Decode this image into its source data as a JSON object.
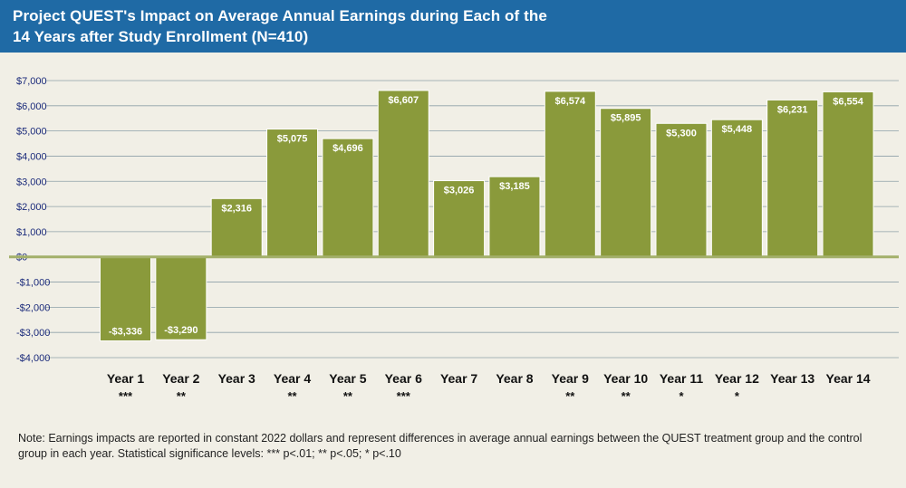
{
  "header": {
    "title_line1": "Project QUEST's Impact on Average Annual Earnings during Each of the",
    "title_line2": "14 Years after Study Enrollment (N=410)"
  },
  "colors": {
    "header_bg": "#1f6aa5",
    "bar": "#8a9a3b",
    "gridline": "#8ea0a8",
    "zero_line": "#a3b06a",
    "background": "#f1efe6"
  },
  "chart_data": {
    "type": "bar",
    "title": "Project QUEST's Impact on Average Annual Earnings during Each of the 14 Years after Study Enrollment (N=410)",
    "categories": [
      "Year 1",
      "Year 2",
      "Year 3",
      "Year 4",
      "Year 5",
      "Year 6",
      "Year 7",
      "Year 8",
      "Year 9",
      "Year 10",
      "Year 11",
      "Year 12",
      "Year 13",
      "Year 14"
    ],
    "values": [
      -3336,
      -3290,
      2316,
      5075,
      4696,
      6607,
      3026,
      3185,
      6574,
      5895,
      5300,
      5448,
      6231,
      6554
    ],
    "value_labels": [
      "-$3,336",
      "-$3,290",
      "$2,316",
      "$5,075",
      "$4,696",
      "$6,607",
      "$3,026",
      "$3,185",
      "$6,574",
      "$5,895",
      "$5,300",
      "$5,448",
      "$6,231",
      "$6,554"
    ],
    "significance": [
      "***",
      "**",
      "",
      "**",
      "**",
      "***",
      "",
      "",
      "**",
      "**",
      "*",
      "*",
      "",
      ""
    ],
    "ylim": [
      -4000,
      7000
    ],
    "yticks": [
      7000,
      6000,
      5000,
      4000,
      3000,
      2000,
      1000,
      0,
      -1000,
      -2000,
      -3000,
      -4000
    ],
    "ytick_labels": [
      "$7,000",
      "$6,000",
      "$5,000",
      "$4,000",
      "$3,000",
      "$2,000",
      "$1,000",
      "$0",
      "-$1,000",
      "-$2,000",
      "-$3,000",
      "-$4,000"
    ],
    "grid": true,
    "xlabel": "",
    "ylabel": ""
  },
  "note": "Note: Earnings impacts are reported in constant 2022 dollars and represent differences in average annual earnings between the QUEST treatment group and the control group in each year. Statistical significance levels: *** p<.01; ** p<.05; * p<.10"
}
